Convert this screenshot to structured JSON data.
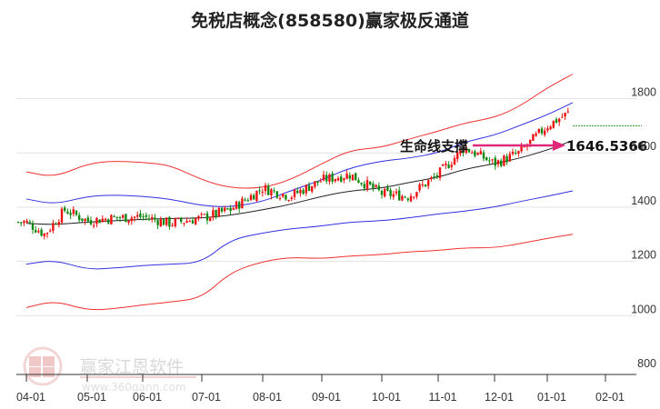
{
  "title": "免税店概念(858580)赢家极反通道",
  "chart_data": {
    "type": "candlestick",
    "title": "免税店概念(858580)赢家极反通道",
    "xlabel": "",
    "ylabel": "",
    "ylim": [
      800,
      1900
    ],
    "y_ticks": [
      800,
      1000,
      1200,
      1400,
      1600,
      1800
    ],
    "x_ticks": [
      "04-01",
      "05-01",
      "06-01",
      "07-01",
      "08-01",
      "09-01",
      "10-01",
      "11-01",
      "12-01",
      "01-01",
      "02-01"
    ],
    "grid": true,
    "annotation": {
      "label": "生命线支撑",
      "value": "1646.5366",
      "arrow_color": "#e0287a"
    },
    "last_close_line": {
      "value": 1700,
      "color": "#2a9a2a",
      "style": "dotted"
    },
    "series": [
      {
        "name": "outer-upper-band",
        "color": "#f03030",
        "x": [
          "04-01",
          "04-15",
          "05-01",
          "05-15",
          "06-01",
          "06-15",
          "07-01",
          "07-15",
          "08-01",
          "08-15",
          "09-01",
          "09-15",
          "10-01",
          "10-15",
          "11-01",
          "11-15",
          "12-01",
          "12-15",
          "01-01",
          "01-15"
        ],
        "values": [
          1530,
          1510,
          1560,
          1570,
          1565,
          1555,
          1500,
          1470,
          1470,
          1500,
          1560,
          1610,
          1620,
          1650,
          1680,
          1710,
          1730,
          1770,
          1840,
          1890
        ]
      },
      {
        "name": "inner-upper-band",
        "color": "#3030e0",
        "x": [
          "04-01",
          "04-15",
          "05-01",
          "05-15",
          "06-01",
          "06-15",
          "07-01",
          "07-15",
          "08-01",
          "08-15",
          "09-01",
          "09-15",
          "10-01",
          "10-15",
          "11-01",
          "11-15",
          "12-01",
          "12-15",
          "01-01",
          "01-15"
        ],
        "values": [
          1430,
          1410,
          1440,
          1445,
          1440,
          1430,
          1405,
          1400,
          1420,
          1460,
          1500,
          1545,
          1570,
          1580,
          1600,
          1640,
          1665,
          1700,
          1740,
          1785
        ]
      },
      {
        "name": "middle-line",
        "color": "#222222",
        "x": [
          "04-01",
          "04-15",
          "05-01",
          "05-15",
          "06-01",
          "06-15",
          "07-01",
          "07-15",
          "08-01",
          "08-15",
          "09-01",
          "09-15",
          "10-01",
          "10-15",
          "11-01",
          "11-15",
          "12-01",
          "12-15",
          "01-01",
          "01-15"
        ],
        "values": [
          1340,
          1335,
          1345,
          1350,
          1355,
          1358,
          1360,
          1370,
          1390,
          1410,
          1440,
          1460,
          1470,
          1490,
          1510,
          1540,
          1560,
          1580,
          1610,
          1646
        ]
      },
      {
        "name": "inner-lower-band",
        "color": "#3030e0",
        "x": [
          "04-01",
          "04-15",
          "05-01",
          "05-15",
          "06-01",
          "06-15",
          "07-01",
          "07-15",
          "08-01",
          "08-15",
          "09-01",
          "09-15",
          "10-01",
          "10-15",
          "11-01",
          "11-15",
          "12-01",
          "12-15",
          "01-01",
          "01-15"
        ],
        "values": [
          1190,
          1205,
          1170,
          1175,
          1185,
          1190,
          1195,
          1280,
          1305,
          1320,
          1330,
          1345,
          1350,
          1360,
          1375,
          1385,
          1400,
          1420,
          1440,
          1460
        ]
      },
      {
        "name": "outer-lower-band",
        "color": "#f03030",
        "x": [
          "04-01",
          "04-15",
          "05-01",
          "05-15",
          "06-01",
          "06-15",
          "07-01",
          "07-15",
          "08-01",
          "08-15",
          "09-01",
          "09-15",
          "10-01",
          "10-15",
          "11-01",
          "11-15",
          "12-01",
          "12-15",
          "01-01",
          "01-15"
        ],
        "values": [
          1030,
          1055,
          1020,
          1025,
          1040,
          1050,
          1065,
          1160,
          1200,
          1215,
          1210,
          1220,
          1225,
          1235,
          1240,
          1250,
          1250,
          1265,
          1285,
          1300
        ]
      },
      {
        "name": "price-close",
        "color": "#e02020",
        "x": [
          "04-01",
          "04-10",
          "04-20",
          "05-01",
          "05-15",
          "06-01",
          "06-15",
          "07-01",
          "07-15",
          "08-01",
          "08-15",
          "09-01",
          "09-15",
          "10-01",
          "10-15",
          "11-01",
          "11-15",
          "12-01",
          "12-15",
          "01-01",
          "01-15",
          "01-20"
        ],
        "values": [
          1345,
          1300,
          1390,
          1350,
          1360,
          1365,
          1340,
          1360,
          1390,
          1470,
          1440,
          1500,
          1520,
          1450,
          1440,
          1520,
          1620,
          1560,
          1600,
          1700,
          1760,
          1700
        ]
      }
    ]
  },
  "y_axis": {
    "labels": [
      "1800",
      "1600",
      "1400",
      "1200",
      "1000",
      "800"
    ]
  },
  "x_axis": {
    "labels": [
      "04-01",
      "05-01",
      "06-01",
      "07-01",
      "08-01",
      "09-01",
      "10-01",
      "11-01",
      "12-01",
      "01-01",
      "02-01"
    ]
  },
  "annotation": {
    "label": "生命线支撑",
    "value": "1646.5366"
  },
  "watermark": {
    "brand": "赢家江恩软件",
    "url": "www.360gann.com",
    "logo_chars": [
      "江",
      "赢",
      "恩",
      "家"
    ]
  }
}
